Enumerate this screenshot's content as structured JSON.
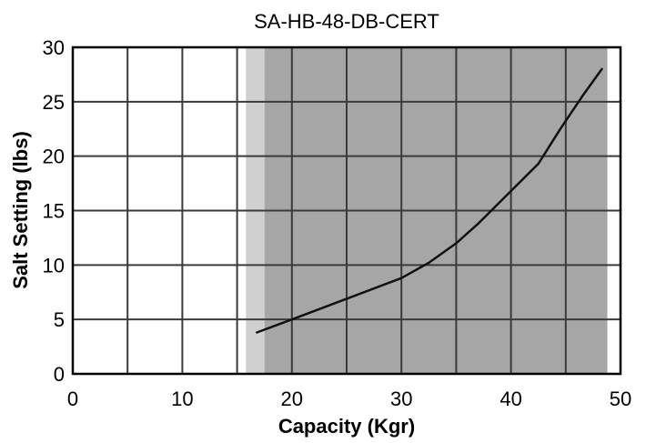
{
  "chart_data": {
    "type": "line",
    "title": "SA-HB-48-DB-CERT",
    "xlabel": "Capacity (Kgr)",
    "ylabel": "Salt Setting (lbs)",
    "xlim": [
      0,
      50
    ],
    "ylim": [
      0,
      30
    ],
    "xticks": [
      "0",
      "10",
      "20",
      "30",
      "40",
      "50"
    ],
    "yticks": [
      "0",
      "5",
      "10",
      "15",
      "20",
      "25",
      "30"
    ],
    "grid": true,
    "shaded_ranges": [
      {
        "from": 15.8,
        "to": 17.5,
        "color": "#d0d0d0"
      },
      {
        "from": 17.5,
        "to": 48.8,
        "color": "#a6a6a6"
      }
    ],
    "series": [
      {
        "color": "#111111",
        "x": [
          16.8,
          20,
          25,
          30,
          32.5,
          35,
          37,
          40,
          42.5,
          44.5,
          46.5,
          48.3
        ],
        "y": [
          3.8,
          5.0,
          6.9,
          8.8,
          10.2,
          12.0,
          13.8,
          16.8,
          19.3,
          22.5,
          25.5,
          28.0
        ]
      }
    ]
  }
}
